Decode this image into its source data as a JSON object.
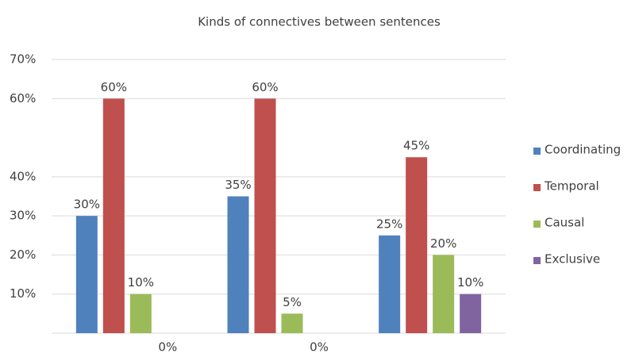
{
  "chart_data": {
    "type": "bar",
    "title": "Kinds of connectives between sentences",
    "categories": [
      null,
      null,
      null
    ],
    "series": [
      {
        "name": "Coordinating",
        "color": "#4f81bd",
        "values": [
          30,
          35,
          25
        ],
        "value_labels": [
          "30%",
          "35%",
          "25%"
        ]
      },
      {
        "name": "Temporal",
        "color": "#c0504d",
        "values": [
          60,
          60,
          45
        ],
        "value_labels": [
          "60%",
          "60%",
          "45%"
        ]
      },
      {
        "name": "Causal",
        "color": "#9bbb59",
        "values": [
          10,
          5,
          20
        ],
        "value_labels": [
          "10%",
          "5%",
          "20%"
        ]
      },
      {
        "name": "Exclusive",
        "color": "#8064a2",
        "values": [
          0,
          0,
          10
        ],
        "value_labels": [
          "0%",
          "0%",
          "10%"
        ]
      }
    ],
    "ylim": [
      0,
      70
    ],
    "yticks": [
      {
        "value": 10,
        "label": "10%"
      },
      {
        "value": 20,
        "label": "20%"
      },
      {
        "value": 30,
        "label": "30%"
      },
      {
        "value": 40,
        "label": "40%"
      },
      {
        "value": 60,
        "label": "60%"
      },
      {
        "value": 70,
        "label": "70%"
      }
    ],
    "grid": true,
    "legend": "right"
  }
}
